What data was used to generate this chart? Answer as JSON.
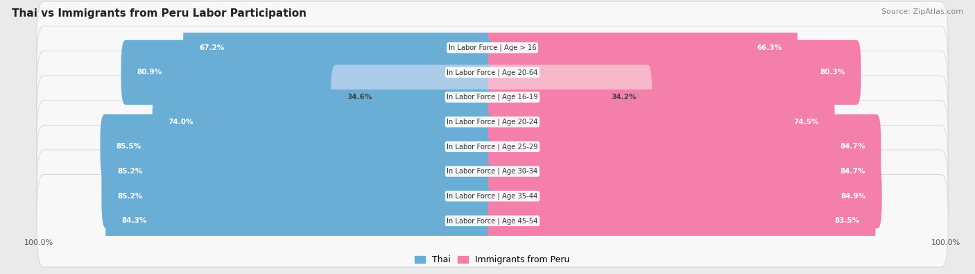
{
  "title": "Thai vs Immigrants from Peru Labor Participation",
  "source": "Source: ZipAtlas.com",
  "categories": [
    "In Labor Force | Age > 16",
    "In Labor Force | Age 20-64",
    "In Labor Force | Age 16-19",
    "In Labor Force | Age 20-24",
    "In Labor Force | Age 25-29",
    "In Labor Force | Age 30-34",
    "In Labor Force | Age 35-44",
    "In Labor Force | Age 45-54"
  ],
  "thai_values": [
    67.2,
    80.9,
    34.6,
    74.0,
    85.5,
    85.2,
    85.2,
    84.3
  ],
  "peru_values": [
    66.3,
    80.3,
    34.2,
    74.5,
    84.7,
    84.7,
    84.9,
    83.5
  ],
  "thai_color": "#6aaed6",
  "thai_color_light": "#aacce8",
  "peru_color": "#f47faa",
  "peru_color_light": "#f8b8cc",
  "background_color": "#eaeaea",
  "row_bg_color": "#f8f8f8",
  "row_bg_alt": "#efefef",
  "label_color_white": "#ffffff",
  "label_color_dark": "#444444",
  "label_center_color": "#333333",
  "max_val": 100.0,
  "legend_thai": "Thai",
  "legend_peru": "Immigrants from Peru"
}
